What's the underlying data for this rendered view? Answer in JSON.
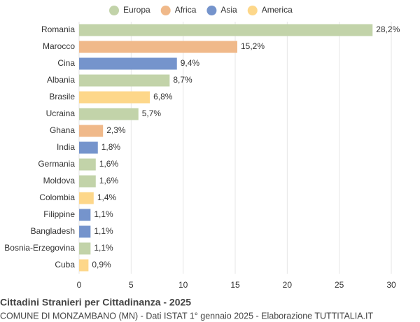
{
  "chart_data": {
    "type": "bar",
    "orientation": "horizontal",
    "title": "Cittadini Stranieri per Cittadinanza - 2025",
    "subtitle": "COMUNE DI MONZAMBANO (MN) - Dati ISTAT 1° gennaio 2025 - Elaborazione TUTTITALIA.IT",
    "categories": [
      "Romania",
      "Marocco",
      "Cina",
      "Albania",
      "Brasile",
      "Ucraina",
      "Ghana",
      "India",
      "Germania",
      "Moldova",
      "Colombia",
      "Filippine",
      "Bangladesh",
      "Bosnia-Erzegovina",
      "Cuba"
    ],
    "series": [
      {
        "name": "Europa",
        "color": "#c2d3a9",
        "values": [
          28.2,
          null,
          null,
          8.7,
          null,
          5.7,
          null,
          null,
          1.6,
          1.6,
          null,
          null,
          null,
          1.1,
          null
        ],
        "value_labels": [
          "28,2%",
          null,
          null,
          "8,7%",
          null,
          "5,7%",
          null,
          null,
          "1,6%",
          "1,6%",
          null,
          null,
          null,
          "1,1%",
          null
        ]
      },
      {
        "name": "Africa",
        "color": "#f0b98a",
        "values": [
          null,
          15.2,
          null,
          null,
          null,
          null,
          2.3,
          null,
          null,
          null,
          null,
          null,
          null,
          null,
          null
        ],
        "value_labels": [
          null,
          "15,2%",
          null,
          null,
          null,
          null,
          "2,3%",
          null,
          null,
          null,
          null,
          null,
          null,
          null,
          null
        ]
      },
      {
        "name": "Asia",
        "color": "#7594cc",
        "values": [
          null,
          null,
          9.4,
          null,
          null,
          null,
          null,
          1.8,
          null,
          null,
          null,
          1.1,
          1.1,
          null,
          null
        ],
        "value_labels": [
          null,
          null,
          "9,4%",
          null,
          null,
          null,
          null,
          "1,8%",
          null,
          null,
          null,
          "1,1%",
          "1,1%",
          null,
          null
        ]
      },
      {
        "name": "America",
        "color": "#fdd78a",
        "values": [
          null,
          null,
          null,
          null,
          6.8,
          null,
          null,
          null,
          null,
          null,
          1.4,
          null,
          null,
          null,
          0.9
        ],
        "value_labels": [
          null,
          null,
          null,
          null,
          "6,8%",
          null,
          null,
          null,
          null,
          null,
          "1,4%",
          null,
          null,
          null,
          "0,9%"
        ]
      }
    ],
    "xlim": [
      0,
      30
    ],
    "xticks": [
      0,
      5,
      10,
      15,
      20,
      25,
      30
    ],
    "grid": true,
    "legend": "top"
  }
}
